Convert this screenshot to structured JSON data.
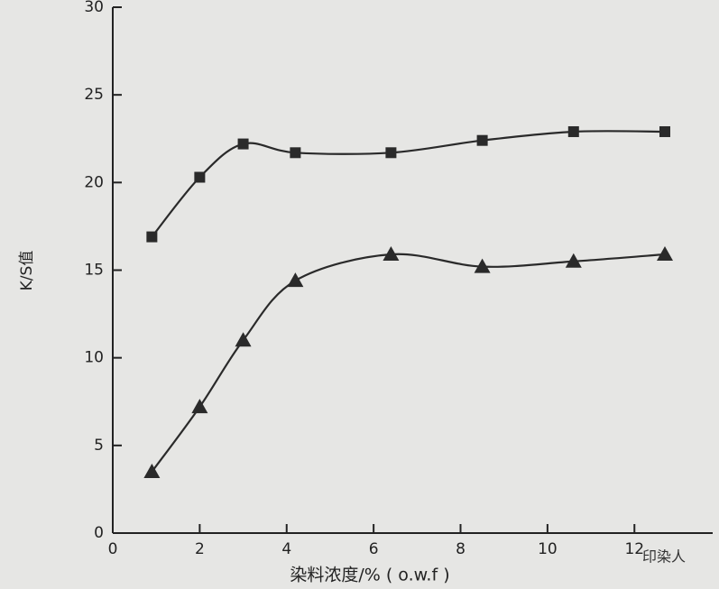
{
  "chart_data": {
    "type": "line",
    "x_label": "染料浓度/% ( o.w.f )",
    "y_label": "K/S值",
    "xlim": [
      0,
      13.8
    ],
    "xticks": [
      0,
      2,
      4,
      6,
      8,
      10,
      12
    ],
    "ylim": [
      0,
      30
    ],
    "yticks": [
      0,
      5,
      10,
      15,
      20,
      25,
      30
    ],
    "series": [
      {
        "color": "#2a2a2a",
        "marker": "square",
        "x": [
          0.9,
          2.0,
          3.0,
          4.2,
          6.4,
          8.5,
          10.6,
          12.7
        ],
        "values": [
          16.9,
          20.3,
          22.2,
          21.7,
          21.7,
          22.4,
          22.9,
          22.9
        ]
      },
      {
        "color": "#2a2a2a",
        "marker": "triangle",
        "x": [
          0.9,
          2.0,
          3.0,
          4.2,
          6.4,
          8.5,
          10.6,
          12.7
        ],
        "values": [
          3.5,
          7.2,
          11.0,
          14.4,
          15.9,
          15.2,
          15.5,
          15.9
        ]
      }
    ],
    "watermark": "印染人"
  }
}
